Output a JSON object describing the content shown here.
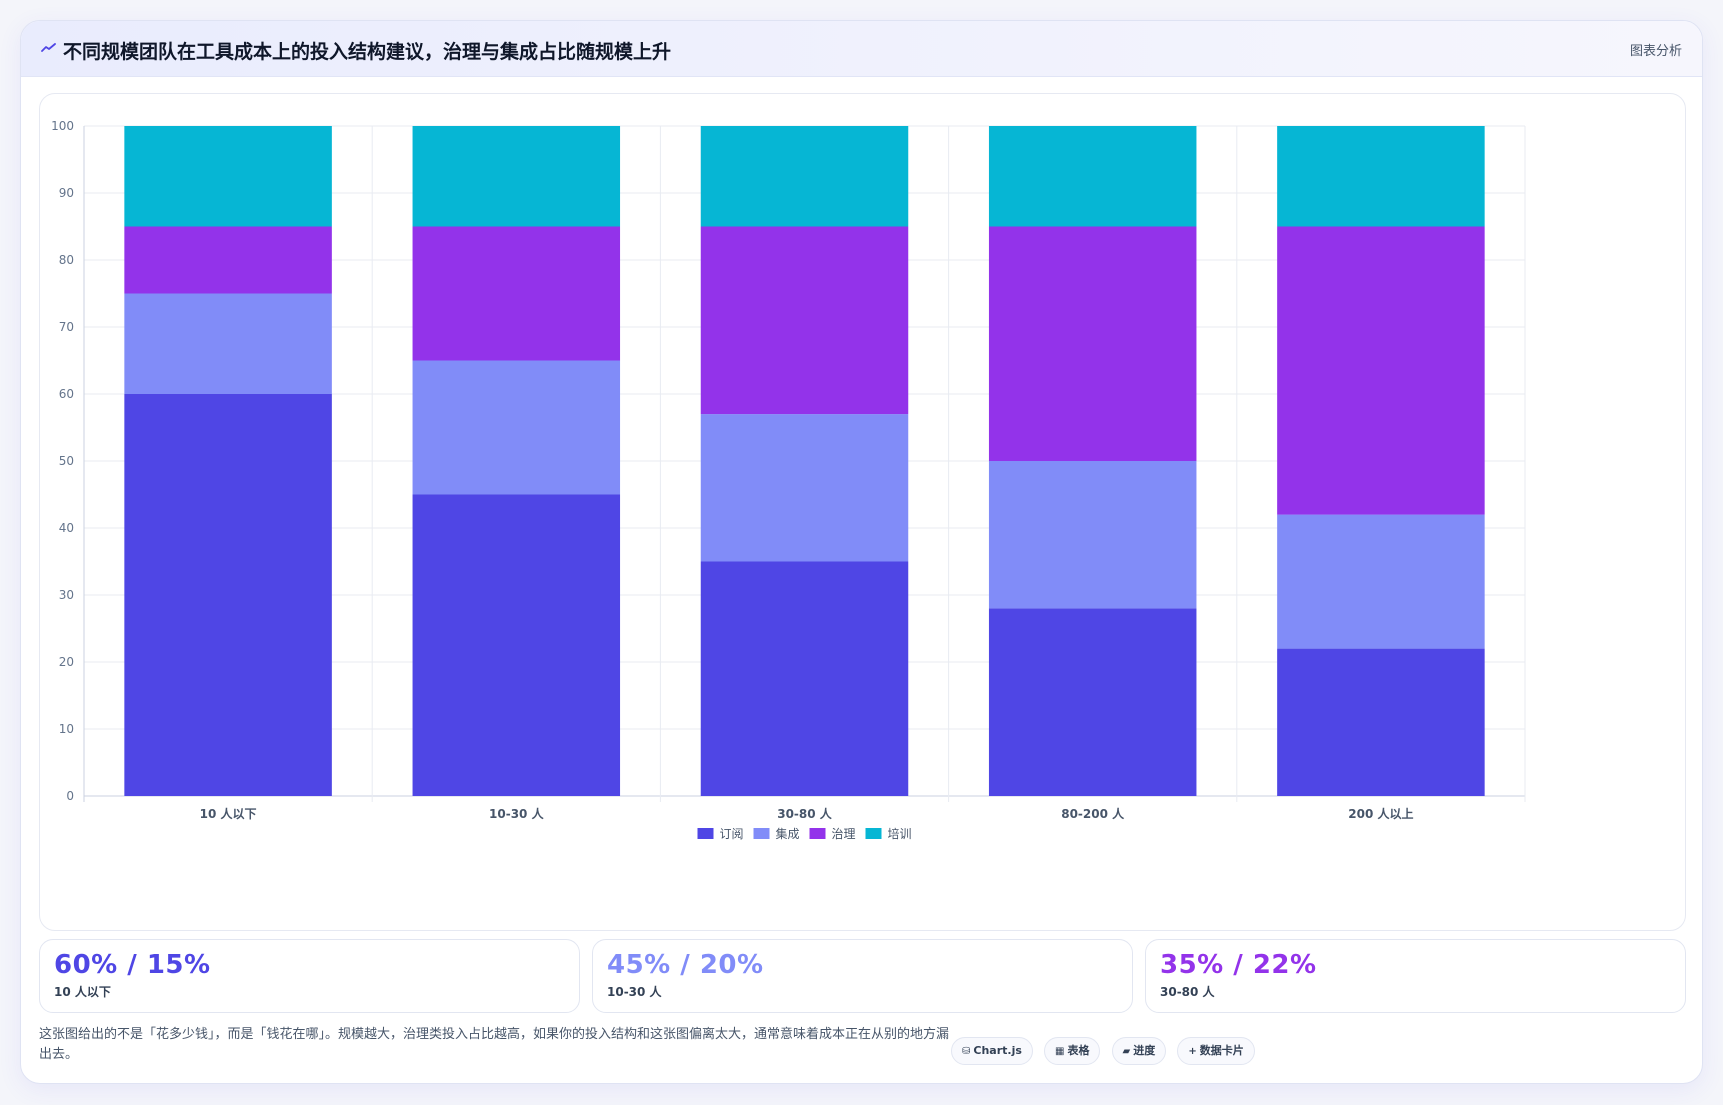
{
  "header": {
    "title": "不同规模团队在工具成本上的投入结构建议，治理与集成占比随规模上升",
    "action_label": "图表分析"
  },
  "chart_data": {
    "type": "bar",
    "stacked": true,
    "categories": [
      "10 人以下",
      "10-30 人",
      "30-80 人",
      "80-200 人",
      "200 人以上"
    ],
    "series": [
      {
        "name": "订阅",
        "color": "#4f46e5",
        "values": [
          60,
          45,
          35,
          28,
          22
        ]
      },
      {
        "name": "集成",
        "color": "#818cf8",
        "values": [
          15,
          20,
          22,
          22,
          20
        ]
      },
      {
        "name": "治理",
        "color": "#9333ea",
        "values": [
          10,
          20,
          28,
          35,
          43
        ]
      },
      {
        "name": "培训",
        "color": "#06b6d4",
        "values": [
          15,
          15,
          15,
          15,
          15
        ]
      }
    ],
    "ylim": [
      0,
      100
    ],
    "yticks": [
      0,
      10,
      20,
      30,
      40,
      50,
      60,
      70,
      80,
      90,
      100
    ],
    "grid": true,
    "legend_position": "bottom"
  },
  "stats": [
    {
      "value": "60% / 15%",
      "label": "10 人以下",
      "color": "#4f46e5"
    },
    {
      "value": "45% / 20%",
      "label": "10-30 人",
      "color": "#818cf8"
    },
    {
      "value": "35% / 22%",
      "label": "30-80 人",
      "color": "#9333ea"
    }
  ],
  "footer": {
    "text": "这张图给出的不是「花多少钱」，而是「钱花在哪」。规模越大，治理类投入占比越高，如果你的投入结构和这张图偏离太大，通常意味着成本正在从别的地方漏出去。"
  },
  "chips": [
    {
      "icon": "⛁",
      "label": "Chart.js"
    },
    {
      "icon": "▦",
      "label": "表格"
    },
    {
      "icon": "▰",
      "label": "进度"
    },
    {
      "icon": "+",
      "label": "数据卡片"
    }
  ]
}
